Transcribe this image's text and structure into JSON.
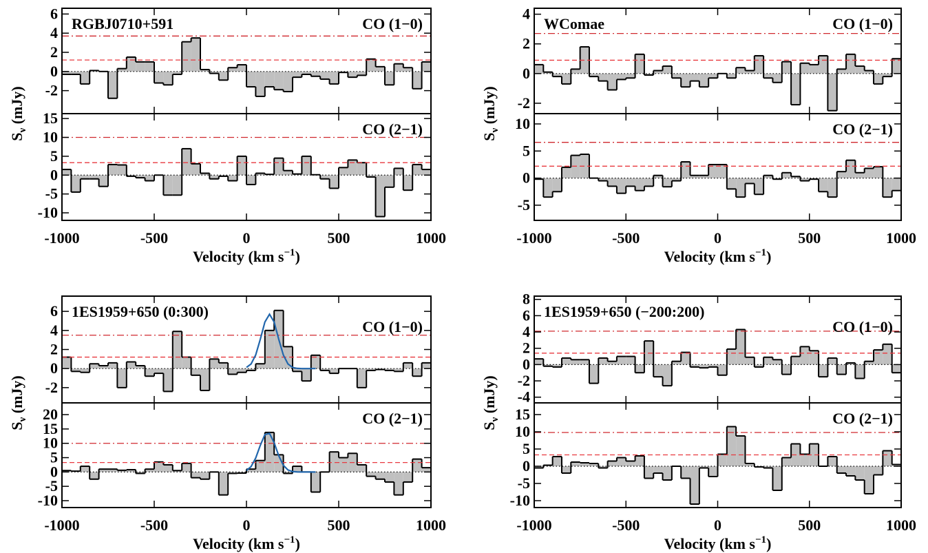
{
  "chart_data": [
    {
      "type": "histogram",
      "title": "RGBJ0710+591",
      "line_label": "CO (1−0)",
      "ylabel": [
        "S",
        "ν",
        " (mJy)"
      ],
      "bins": [
        -1000,
        -950,
        -900,
        -850,
        -800,
        -750,
        -700,
        -650,
        -600,
        -550,
        -500,
        -450,
        -400,
        -350,
        -300,
        -250,
        -200,
        -150,
        -100,
        -50,
        0,
        50,
        100,
        150,
        200,
        250,
        300,
        350,
        400,
        450,
        500,
        550,
        600,
        650,
        700,
        750,
        800,
        850,
        900,
        950,
        1000
      ],
      "values": [
        -0.3,
        -0.3,
        -1.3,
        0.1,
        0,
        -2.8,
        0.3,
        1.5,
        1.0,
        1.0,
        -1.2,
        -1.4,
        -0.3,
        3.1,
        3.5,
        0.2,
        -0.2,
        -0.9,
        0.4,
        0.7,
        -1.6,
        -2.6,
        -1.6,
        -1.9,
        -2.1,
        -0.6,
        -0.3,
        -0.5,
        -0.8,
        -1.3,
        -0.1,
        -0.6,
        -0.4,
        1.3,
        0.5,
        -1.4,
        0.8,
        0.4,
        -1.8,
        1.0
      ],
      "color": "#c0c0c0",
      "xlim": [
        -1000,
        1000
      ],
      "xticks": [
        -1000,
        -500,
        0,
        500,
        1000
      ],
      "ylim": [
        -4.4,
        6.6
      ],
      "yticks": [
        -2,
        0,
        2,
        4,
        6
      ],
      "hlines": [
        {
          "value": 1.2,
          "style": "dashed",
          "color": "#e8393f"
        },
        {
          "value": 3.7,
          "style": "dashdot",
          "color": "#d0282e"
        }
      ]
    },
    {
      "type": "histogram",
      "line_label": "CO (2−1)",
      "xlabel": [
        "Velocity (km s",
        "−1",
        ")"
      ],
      "bins": [
        -1000,
        -950,
        -900,
        -850,
        -800,
        -750,
        -700,
        -650,
        -600,
        -550,
        -500,
        -450,
        -400,
        -350,
        -300,
        -250,
        -200,
        -150,
        -100,
        -50,
        0,
        50,
        100,
        150,
        200,
        250,
        300,
        350,
        400,
        450,
        500,
        550,
        600,
        650,
        700,
        750,
        800,
        850,
        900,
        950,
        1000
      ],
      "values": [
        1.5,
        -4.5,
        -1.0,
        -1.0,
        -3.0,
        2.8,
        2.7,
        -0.3,
        -0.7,
        -1.5,
        0.0,
        -5.3,
        -5.3,
        7.0,
        3.0,
        0.5,
        -1.0,
        -0.3,
        -1.5,
        5.0,
        -2.5,
        0.5,
        0.2,
        4.5,
        1.2,
        0.3,
        5.0,
        0.1,
        -1.0,
        -3.5,
        2.0,
        4.0,
        3.3,
        -0.5,
        -11,
        -3.2,
        1.8,
        -4.0,
        2.8,
        1.5
      ],
      "color": "#c0c0c0",
      "xlim": [
        -1000,
        1000
      ],
      "xticks": [
        -1000,
        -500,
        0,
        500,
        1000
      ],
      "ylim": [
        -12,
        16.3
      ],
      "yticks": [
        -10,
        -5,
        0,
        5,
        10,
        15
      ],
      "hlines": [
        {
          "value": 3.3,
          "style": "dashed",
          "color": "#e8393f"
        },
        {
          "value": 10,
          "style": "dashdot",
          "color": "#d0282e"
        }
      ]
    },
    {
      "type": "histogram",
      "title": "WComae",
      "line_label": "CO (1−0)",
      "ylabel": [
        "S",
        "ν",
        " (mJy)"
      ],
      "bins": [
        -1000,
        -950,
        -900,
        -850,
        -800,
        -750,
        -700,
        -650,
        -600,
        -550,
        -500,
        -450,
        -400,
        -350,
        -300,
        -250,
        -200,
        -150,
        -100,
        -50,
        0,
        50,
        100,
        150,
        200,
        250,
        300,
        350,
        400,
        450,
        500,
        550,
        600,
        650,
        700,
        750,
        800,
        850,
        900,
        950,
        1000
      ],
      "values": [
        0.6,
        0.1,
        -0.2,
        -0.7,
        0.3,
        1.8,
        -0.2,
        -0.5,
        -1.1,
        -0.4,
        -0.3,
        1.3,
        -0.1,
        0.2,
        0.5,
        -0.3,
        -0.9,
        -0.5,
        -0.9,
        -0.3,
        0.0,
        -0.3,
        0.4,
        0.2,
        1.2,
        -0.3,
        -0.6,
        0.8,
        -2.1,
        0.7,
        0.6,
        1.2,
        -2.5,
        0.3,
        1.3,
        0.5,
        0.2,
        -0.7,
        -0.2,
        1.0
      ],
      "color": "#c0c0c0",
      "xlim": [
        -1000,
        1000
      ],
      "xticks": [
        -1000,
        -500,
        0,
        500,
        1000
      ],
      "ylim": [
        -2.7,
        4.4
      ],
      "yticks": [
        -2,
        0,
        2,
        4
      ],
      "hlines": [
        {
          "value": 0.9,
          "style": "dashed",
          "color": "#e8393f"
        },
        {
          "value": 2.7,
          "style": "dashdot",
          "color": "#d0282e"
        }
      ]
    },
    {
      "type": "histogram",
      "line_label": "CO (2−1)",
      "xlabel": [
        "Velocity (km s",
        "−1",
        ")"
      ],
      "bins": [
        -1000,
        -950,
        -900,
        -850,
        -800,
        -750,
        -700,
        -650,
        -600,
        -550,
        -500,
        -450,
        -400,
        -350,
        -300,
        -250,
        -200,
        -150,
        -100,
        -50,
        0,
        50,
        100,
        150,
        200,
        250,
        300,
        350,
        400,
        450,
        500,
        550,
        600,
        650,
        700,
        750,
        800,
        850,
        900,
        950,
        1000
      ],
      "values": [
        -0.2,
        -3.5,
        -2.5,
        2.0,
        4.2,
        4.4,
        0.0,
        -0.5,
        -1.5,
        -2.8,
        -1.5,
        -2.3,
        -1.5,
        0.5,
        -1.6,
        -0.5,
        3.0,
        0.5,
        0.5,
        2.5,
        2.5,
        -2.0,
        -3.5,
        -1.0,
        -3.0,
        0.5,
        -0.2,
        1.0,
        0.3,
        -0.5,
        -0.2,
        -2.5,
        -3.5,
        1.2,
        3.3,
        1.0,
        1.8,
        2.1,
        -3.5,
        -2.3
      ],
      "color": "#c0c0c0",
      "xlim": [
        -1000,
        1000
      ],
      "xticks": [
        -1000,
        -500,
        0,
        500,
        1000
      ],
      "ylim": [
        -7.8,
        11.9
      ],
      "yticks": [
        -5,
        0,
        5,
        10
      ],
      "hlines": [
        {
          "value": 2.2,
          "style": "dashed",
          "color": "#e8393f"
        },
        {
          "value": 6.6,
          "style": "dashdot",
          "color": "#d0282e"
        }
      ]
    },
    {
      "type": "histogram",
      "title": "1ES1959+650 (0:300)",
      "line_label": "CO (1−0)",
      "ylabel": [
        "S",
        "ν",
        " (mJy)"
      ],
      "bins": [
        -1000,
        -950,
        -900,
        -850,
        -800,
        -750,
        -700,
        -650,
        -600,
        -550,
        -500,
        -450,
        -400,
        -350,
        -300,
        -250,
        -200,
        -150,
        -100,
        -50,
        0,
        50,
        100,
        150,
        200,
        250,
        300,
        350,
        400,
        450,
        500,
        550,
        600,
        650,
        700,
        750,
        800,
        850,
        900,
        950,
        1000
      ],
      "values": [
        1.2,
        -0.3,
        -0.4,
        0.5,
        0.3,
        0.6,
        -2.0,
        0.7,
        0.3,
        -0.8,
        -0.5,
        -2.4,
        3.9,
        1.2,
        -0.7,
        -2.3,
        1.0,
        0.6,
        -0.6,
        -0.4,
        -0.2,
        0.5,
        4.0,
        6.1,
        2.3,
        -0.3,
        -1.3,
        1.4,
        -0.2,
        -0.5,
        0.0,
        0.0,
        -2.0,
        -0.2,
        -0.1,
        -0.2,
        -0.3,
        0.6,
        -0.8,
        0.6
      ],
      "color": "#c0c0c0",
      "xlim": [
        -1000,
        1000
      ],
      "xticks": [
        -1000,
        -500,
        0,
        500,
        1000
      ],
      "ylim": [
        -3.6,
        7.6
      ],
      "yticks": [
        -2,
        0,
        2,
        4,
        6
      ],
      "hlines": [
        {
          "value": 1.2,
          "style": "dashed",
          "color": "#e8393f"
        },
        {
          "value": 3.5,
          "style": "dashdot",
          "color": "#d0282e"
        }
      ],
      "fit": {
        "color": "#2166ac",
        "x": [
          0,
          25,
          50,
          75,
          100,
          125,
          150,
          175,
          200,
          225,
          250,
          275,
          300,
          325,
          350,
          375
        ],
        "values": [
          0.12,
          0.48,
          1.42,
          3.07,
          4.89,
          5.7,
          4.89,
          3.07,
          1.42,
          0.48,
          0.12,
          0.02,
          0,
          0,
          0,
          0
        ]
      }
    },
    {
      "type": "histogram",
      "line_label": "CO (2−1)",
      "xlabel": [
        "Velocity (km s",
        "−1",
        ")"
      ],
      "bins": [
        -1000,
        -950,
        -900,
        -850,
        -800,
        -750,
        -700,
        -650,
        -600,
        -550,
        -500,
        -450,
        -400,
        -350,
        -300,
        -250,
        -200,
        -150,
        -100,
        -50,
        0,
        50,
        100,
        150,
        200,
        250,
        300,
        350,
        400,
        450,
        500,
        550,
        600,
        650,
        700,
        750,
        800,
        850,
        900,
        950,
        1000
      ],
      "values": [
        0.5,
        0.3,
        2.0,
        -2.5,
        1.0,
        1.0,
        0.6,
        0.8,
        -0.5,
        1.0,
        3.5,
        2.5,
        0.5,
        3.0,
        -2.0,
        -2.5,
        0.0,
        -8.0,
        -0.5,
        -0.4,
        1.0,
        4.0,
        13.8,
        6.0,
        -0.5,
        2.0,
        0.0,
        -7.0,
        0.0,
        7.0,
        5.0,
        6.5,
        2.5,
        -1.5,
        -2.5,
        -3.5,
        -8.0,
        -3.5,
        4.5,
        1.5
      ],
      "color": "#c0c0c0",
      "xlim": [
        -1000,
        1000
      ],
      "xticks": [
        -1000,
        -500,
        0,
        500,
        1000
      ],
      "ylim": [
        -12.4,
        24.1
      ],
      "yticks": [
        -10,
        -5,
        0,
        5,
        10,
        15,
        20
      ],
      "hlines": [
        {
          "value": 3.3,
          "style": "dashed",
          "color": "#e8393f"
        },
        {
          "value": 10,
          "style": "dashdot",
          "color": "#d0282e"
        }
      ],
      "fit": {
        "color": "#2166ac",
        "x": [
          0,
          25,
          50,
          75,
          100,
          125,
          150,
          175,
          200,
          225,
          250,
          275,
          300,
          325,
          350,
          375
        ],
        "values": [
          0.53,
          1.87,
          4.86,
          9.3,
          13.05,
          13.47,
          10.2,
          5.67,
          2.32,
          0.7,
          0.15,
          0.02,
          0,
          0,
          0,
          0
        ]
      }
    },
    {
      "type": "histogram",
      "title": "1ES1959+650 (−200:200)",
      "line_label": "CO (1−0)",
      "ylabel": [
        "S",
        "ν",
        " (mJy)"
      ],
      "bins": [
        -1000,
        -950,
        -900,
        -850,
        -800,
        -750,
        -700,
        -650,
        -600,
        -550,
        -500,
        -450,
        -400,
        -350,
        -300,
        -250,
        -200,
        -150,
        -100,
        -50,
        0,
        50,
        100,
        150,
        200,
        250,
        300,
        350,
        400,
        450,
        500,
        550,
        600,
        650,
        700,
        750,
        800,
        850,
        900,
        950,
        1000
      ],
      "values": [
        0.7,
        -0.2,
        -0.3,
        0.8,
        0.6,
        0.6,
        -2.3,
        0.8,
        0.4,
        1.0,
        1.0,
        -1.0,
        2.9,
        -1.5,
        -2.6,
        0.4,
        1.5,
        -0.3,
        -0.4,
        -0.3,
        -1.3,
        1.9,
        4.3,
        0.9,
        -0.3,
        0.9,
        0.6,
        -1.2,
        1.0,
        2.2,
        1.7,
        -1.5,
        0.8,
        -1.2,
        0.2,
        -1.7,
        0.4,
        1.8,
        2.5,
        -1.0
      ],
      "color": "#c0c0c0",
      "xlim": [
        -1000,
        1000
      ],
      "xticks": [
        -1000,
        -500,
        0,
        500,
        1000
      ],
      "ylim": [
        -4.7,
        8.4
      ],
      "yticks": [
        -4,
        -2,
        0,
        2,
        4,
        6,
        8
      ],
      "hlines": [
        {
          "value": 1.4,
          "style": "dashed",
          "color": "#e8393f"
        },
        {
          "value": 4.1,
          "style": "dashdot",
          "color": "#d0282e"
        }
      ]
    },
    {
      "type": "histogram",
      "line_label": "CO (2−1)",
      "xlabel": [
        "Velocity (km s",
        "−1",
        ")"
      ],
      "bins": [
        -1000,
        -950,
        -900,
        -850,
        -800,
        -750,
        -700,
        -650,
        -600,
        -550,
        -500,
        -450,
        -400,
        -350,
        -300,
        -250,
        -200,
        -150,
        -100,
        -50,
        0,
        50,
        100,
        150,
        200,
        250,
        300,
        350,
        400,
        450,
        500,
        550,
        600,
        650,
        700,
        750,
        800,
        850,
        900,
        950,
        1000
      ],
      "values": [
        -0.5,
        0.3,
        2.8,
        -2.0,
        1.2,
        1.0,
        0.8,
        -0.5,
        1.5,
        2.5,
        1.5,
        3.0,
        -3.5,
        -2.0,
        -4.0,
        0.0,
        -3.5,
        -11,
        -0.5,
        -3.0,
        3.5,
        11.5,
        8.8,
        0.8,
        -0.2,
        -0.5,
        -7.0,
        2.5,
        6.5,
        3.5,
        6.5,
        0.0,
        2.8,
        -2.0,
        -2.8,
        -4.0,
        -8.0,
        -2.5,
        4.5,
        0.5
      ],
      "color": "#c0c0c0",
      "xlim": [
        -1000,
        1000
      ],
      "xticks": [
        -1000,
        -500,
        0,
        500,
        1000
      ],
      "ylim": [
        -12,
        18.4
      ],
      "yticks": [
        -10,
        -5,
        0,
        5,
        10,
        15
      ],
      "hlines": [
        {
          "value": 3.3,
          "style": "dashed",
          "color": "#e8393f"
        },
        {
          "value": 9.8,
          "style": "dashdot",
          "color": "#d0282e"
        }
      ]
    }
  ]
}
